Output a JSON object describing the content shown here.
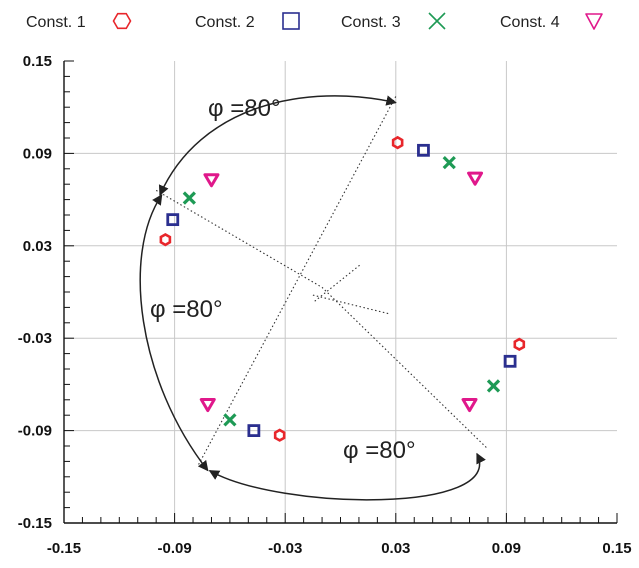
{
  "chart_data": {
    "type": "scatter",
    "xlim": [
      -0.15,
      0.15
    ],
    "ylim": [
      -0.15,
      0.15
    ],
    "xticks": [
      "-0.15",
      "-0.09",
      "-0.03",
      "0.03",
      "0.09",
      "0.15"
    ],
    "yticks": [
      "0.15",
      "0.09",
      "0.03",
      "-0.03",
      "-0.09",
      "-0.15"
    ],
    "grid": true,
    "legend_position": "top",
    "series": [
      {
        "name": "Const. 1",
        "marker": "hexagon",
        "color": "#e8262b",
        "points": [
          [
            -0.095,
            0.034
          ],
          [
            0.031,
            0.097
          ],
          [
            0.097,
            -0.034
          ],
          [
            -0.033,
            -0.093
          ]
        ]
      },
      {
        "name": "Const. 2",
        "marker": "square",
        "color": "#2b2f8f",
        "points": [
          [
            -0.091,
            0.047
          ],
          [
            0.045,
            0.092
          ],
          [
            0.092,
            -0.045
          ],
          [
            -0.047,
            -0.09
          ]
        ]
      },
      {
        "name": "Const. 3",
        "marker": "cross",
        "color": "#1e9a55",
        "points": [
          [
            -0.082,
            0.061
          ],
          [
            0.059,
            0.084
          ],
          [
            0.083,
            -0.061
          ],
          [
            -0.06,
            -0.083
          ]
        ]
      },
      {
        "name": "Const. 4",
        "marker": "triangle-down",
        "color": "#e0188b",
        "points": [
          [
            -0.07,
            0.073
          ],
          [
            0.073,
            0.074
          ],
          [
            0.07,
            -0.073
          ],
          [
            -0.072,
            -0.073
          ]
        ]
      }
    ],
    "annotations": [
      {
        "text": "φ =80°"
      },
      {
        "text": "φ =80°"
      },
      {
        "text": "φ =80°"
      }
    ],
    "dotted_lines": [
      [
        [
          -0.1,
          0.066
        ],
        [
          -0.01,
          0.003
        ],
        [
          0.08,
          -0.102
        ]
      ],
      [
        [
          -0.077,
          -0.112
        ],
        [
          0.03,
          0.127
        ]
      ],
      [
        [
          -0.015,
          -0.002
        ],
        [
          0.026,
          -0.014
        ]
      ],
      [
        [
          -0.014,
          -0.006
        ],
        [
          0.011,
          0.018
        ]
      ]
    ],
    "arcs": [
      {
        "from": [
          -0.098,
          0.063
        ],
        "to": [
          0.03,
          0.123
        ],
        "bulge": "up"
      },
      {
        "from": [
          -0.072,
          -0.116
        ],
        "to": [
          -0.097,
          0.063
        ],
        "bulge": "left"
      },
      {
        "from": [
          -0.071,
          -0.116
        ],
        "to": [
          0.074,
          -0.105
        ],
        "bulge": "down"
      }
    ]
  }
}
